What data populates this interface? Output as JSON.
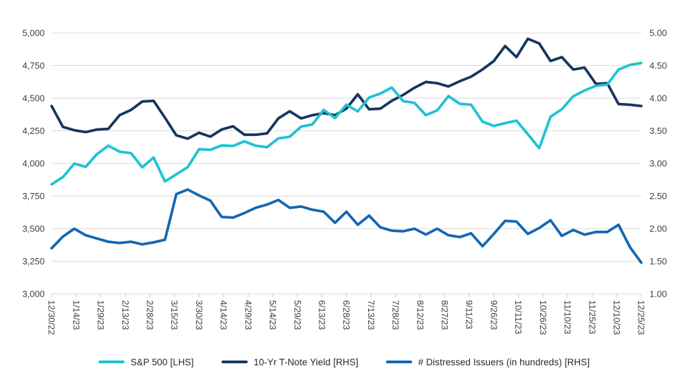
{
  "chart_data": {
    "type": "line",
    "title": "",
    "grid": true,
    "legend_position": "bottom",
    "x_tick_labels": [
      "12/30/22",
      "1/14/23",
      "1/29/23",
      "2/13/23",
      "2/28/23",
      "3/15/23",
      "3/30/23",
      "4/14/23",
      "4/29/23",
      "5/14/23",
      "5/29/23",
      "6/13/23",
      "6/28/23",
      "7/13/23",
      "7/28/23",
      "8/12/23",
      "8/27/23",
      "9/11/23",
      "9/26/23",
      "10/11/23",
      "10/26/23",
      "11/10/23",
      "11/25/23",
      "12/10/23",
      "12/25/23"
    ],
    "left_axis": {
      "min": 3000,
      "max": 5000,
      "tick_labels": [
        "5,000",
        "4,750",
        "4,500",
        "4,250",
        "4,000",
        "3,750",
        "3,500",
        "3,250",
        "3,000"
      ]
    },
    "right_axis": {
      "min": 1.0,
      "max": 5.0,
      "tick_labels": [
        "5.00",
        "4.50",
        "4.00",
        "3.50",
        "3.00",
        "2.50",
        "2.00",
        "1.50",
        "1.00"
      ]
    },
    "series": [
      {
        "id": "sp500",
        "name": "S&P 500 [LHS]",
        "axis": "left",
        "color": "#1FC2D4",
        "values": [
          3840,
          3895,
          3999,
          3973,
          4071,
          4136,
          4090,
          4079,
          3970,
          4046,
          3862,
          3917,
          3971,
          4109,
          4105,
          4138,
          4134,
          4169,
          4136,
          4124,
          4192,
          4205,
          4282,
          4299,
          4410,
          4348,
          4450,
          4399,
          4505,
          4536,
          4582,
          4478,
          4464,
          4370,
          4406,
          4516,
          4457,
          4450,
          4320,
          4288,
          4309,
          4328,
          4224,
          4117,
          4358,
          4415,
          4514,
          4559,
          4595,
          4604,
          4719,
          4755,
          4770
        ]
      },
      {
        "id": "tnote",
        "name": "10-Yr T-Note Yield [RHS]",
        "axis": "right",
        "color": "#16355E",
        "values": [
          3.88,
          3.56,
          3.51,
          3.48,
          3.52,
          3.53,
          3.74,
          3.82,
          3.95,
          3.96,
          3.7,
          3.43,
          3.38,
          3.47,
          3.41,
          3.52,
          3.57,
          3.44,
          3.44,
          3.46,
          3.69,
          3.8,
          3.69,
          3.74,
          3.77,
          3.74,
          3.84,
          4.06,
          3.83,
          3.84,
          3.96,
          4.05,
          4.16,
          4.25,
          4.23,
          4.18,
          4.26,
          4.33,
          4.44,
          4.57,
          4.8,
          4.63,
          4.91,
          4.84,
          4.57,
          4.63,
          4.44,
          4.47,
          4.22,
          4.23,
          3.91,
          3.9,
          3.88
        ]
      },
      {
        "id": "distressed",
        "name": "# Distressed Issuers (in hundreds) [RHS]",
        "axis": "right",
        "color": "#1467B2",
        "values": [
          1.7,
          1.88,
          2.0,
          1.9,
          1.85,
          1.8,
          1.78,
          1.8,
          1.76,
          1.79,
          1.83,
          2.53,
          2.6,
          2.51,
          2.43,
          2.18,
          2.17,
          2.24,
          2.32,
          2.37,
          2.44,
          2.32,
          2.34,
          2.29,
          2.26,
          2.09,
          2.26,
          2.06,
          2.2,
          2.02,
          1.97,
          1.96,
          2.0,
          1.91,
          2.0,
          1.9,
          1.87,
          1.93,
          1.73,
          1.92,
          2.12,
          2.11,
          1.92,
          2.01,
          2.13,
          1.89,
          1.98,
          1.91,
          1.95,
          1.95,
          2.06,
          1.72,
          1.48
        ]
      }
    ],
    "style": {
      "grid_color": "#D8D8D8",
      "tick_color": "#C6C6C6",
      "axis_text_color": "#3E3E3E"
    }
  }
}
